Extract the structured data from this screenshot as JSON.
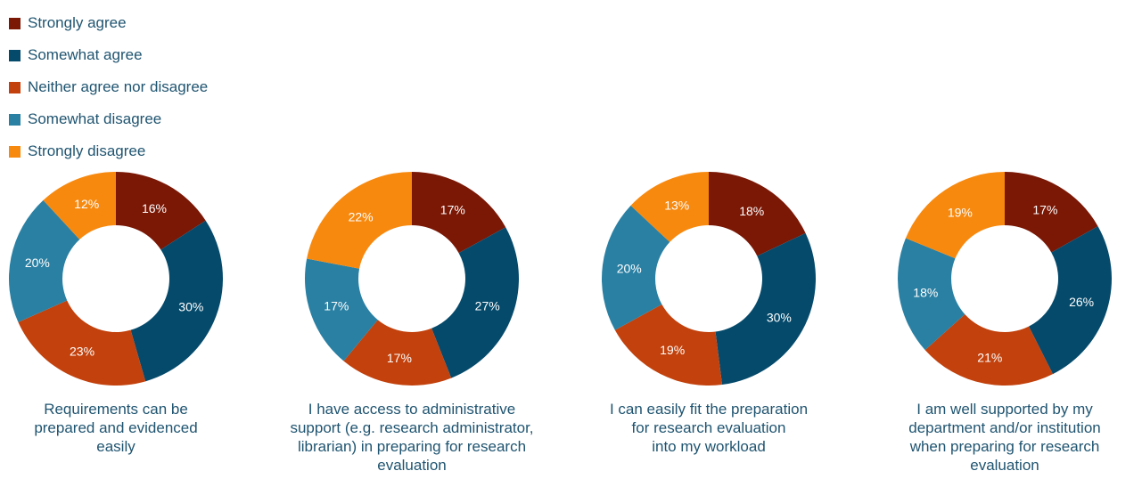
{
  "colors": {
    "Strongly agree": "#7a1705",
    "Somewhat agree": "#054a6b",
    "Neither agree nor disagree": "#c2410c",
    "Somewhat disagree": "#2a80a3",
    "Strongly disagree": "#f7890f"
  },
  "legend": [
    "Strongly agree",
    "Somewhat agree",
    "Neither agree nor disagree",
    "Somewhat disagree",
    "Strongly disagree"
  ],
  "chart_data": [
    {
      "type": "pie",
      "variant": "donut",
      "title_lines": [
        "Requirements can be",
        "prepared and evidenced",
        "easily"
      ],
      "categories": [
        "Strongly agree",
        "Somewhat agree",
        "Neither agree nor disagree",
        "Somewhat disagree",
        "Strongly disagree"
      ],
      "values": [
        16,
        30,
        23,
        20,
        12
      ],
      "labels": [
        "16%",
        "30%",
        "23%",
        "20%",
        "12%"
      ]
    },
    {
      "type": "pie",
      "variant": "donut",
      "title_lines": [
        "I have access to administrative",
        "support (e.g. research administrator,",
        "librarian) in preparing for research",
        "evaluation"
      ],
      "categories": [
        "Strongly agree",
        "Somewhat agree",
        "Neither agree nor disagree",
        "Somewhat disagree",
        "Strongly disagree"
      ],
      "values": [
        17,
        27,
        17,
        17,
        22
      ],
      "labels": [
        "17%",
        "27%",
        "17%",
        "17%",
        "22%"
      ]
    },
    {
      "type": "pie",
      "variant": "donut",
      "title_lines": [
        "I can easily fit the preparation",
        "for research evaluation",
        "into my workload"
      ],
      "categories": [
        "Strongly agree",
        "Somewhat agree",
        "Neither agree nor disagree",
        "Somewhat disagree",
        "Strongly disagree"
      ],
      "values": [
        18,
        30,
        19,
        20,
        13
      ],
      "labels": [
        "18%",
        "30%",
        "19%",
        "20%",
        "13%"
      ]
    },
    {
      "type": "pie",
      "variant": "donut",
      "title_lines": [
        "I am well supported by my",
        "department and/or institution",
        "when preparing for research",
        "evaluation"
      ],
      "categories": [
        "Strongly agree",
        "Somewhat agree",
        "Neither agree nor disagree",
        "Somewhat disagree",
        "Strongly disagree"
      ],
      "values": [
        17,
        26,
        21,
        18,
        19
      ],
      "labels": [
        "17%",
        "26%",
        "21%",
        "18%",
        "19%"
      ]
    }
  ]
}
